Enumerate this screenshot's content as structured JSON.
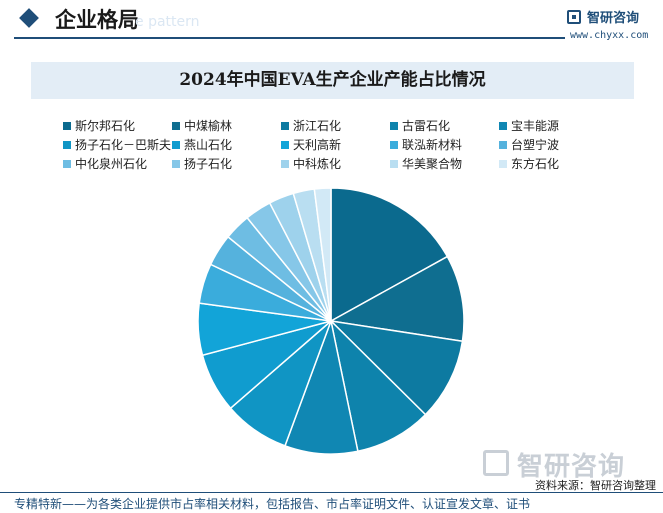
{
  "header": {
    "section_title": "企业格局",
    "watermark_en": "e pattern",
    "brand_name": "智研咨询",
    "brand_url": "www.chyxx.com"
  },
  "chart_data": {
    "type": "pie",
    "title": "2024年中国EVA生产企业产能占比情况",
    "legend_position": "top",
    "start_angle_deg": 0,
    "direction": "clockwise",
    "slices": [
      {
        "label": "斯尔邦石化",
        "value": 17.8,
        "color": "#0b6a8e"
      },
      {
        "label": "中煤榆林",
        "value": 11.0,
        "color": "#0f6e90"
      },
      {
        "label": "浙江石化",
        "value": 10.5,
        "color": "#0d7aa1"
      },
      {
        "label": "古雷石化",
        "value": 9.8,
        "color": "#0e83ac"
      },
      {
        "label": "宝丰能源",
        "value": 9.3,
        "color": "#1087b3"
      },
      {
        "label": "扬子石化－巴斯夫",
        "value": 8.4,
        "color": "#1095c4"
      },
      {
        "label": "燕山石化",
        "value": 7.6,
        "color": "#109ccf"
      },
      {
        "label": "天利高新",
        "value": 6.6,
        "color": "#12a4d8"
      },
      {
        "label": "联泓新材料",
        "value": 5.1,
        "color": "#3aacdc"
      },
      {
        "label": "台塑宁波",
        "value": 4.1,
        "color": "#55b2dd"
      },
      {
        "label": "中化泉州石化",
        "value": 3.4,
        "color": "#6ebde3"
      },
      {
        "label": "扬子石化",
        "value": 3.4,
        "color": "#86c7e8"
      },
      {
        "label": "中科炼化",
        "value": 3.2,
        "color": "#9ed2ec"
      },
      {
        "label": "华美聚合物",
        "value": 2.7,
        "color": "#b9def1"
      },
      {
        "label": "东方石化",
        "value": 2.1,
        "color": "#d2e9f6"
      }
    ]
  },
  "watermark": {
    "brand_cn": "智研咨询"
  },
  "source_text": "资料来源：智研咨询整理",
  "footer_text": "专精特新——为各类企业提供市占率相关材料，包括报告、市占率证明文件、认证宣发文章、证书"
}
